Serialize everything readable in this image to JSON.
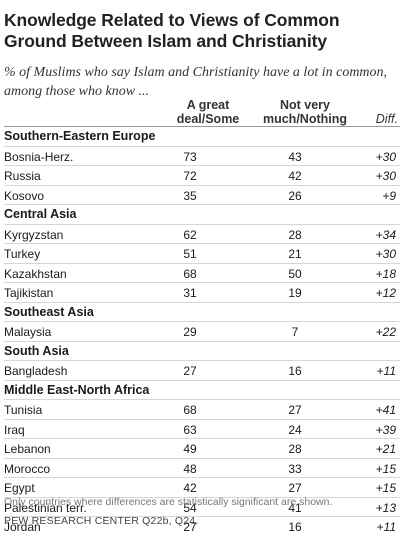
{
  "chart_data": {
    "type": "table",
    "title": "Knowledge Related to Views of Common Ground Between Islam and Christianity",
    "subtitle": "% of Muslims who say Islam and Christianity have a lot in common, among those who know ...",
    "columns": [
      "A great deal/Some",
      "Not very much/Nothing",
      "Diff."
    ],
    "groups": [
      {
        "region": "Southern-Eastern Europe",
        "rows": [
          {
            "country": "Bosnia-Herz.",
            "a": "73",
            "b": "43",
            "diff": "+30"
          },
          {
            "country": "Russia",
            "a": "72",
            "b": "42",
            "diff": "+30"
          },
          {
            "country": "Kosovo",
            "a": "35",
            "b": "26",
            "diff": "+9"
          }
        ]
      },
      {
        "region": "Central Asia",
        "rows": [
          {
            "country": "Kyrgyzstan",
            "a": "62",
            "b": "28",
            "diff": "+34"
          },
          {
            "country": "Turkey",
            "a": "51",
            "b": "21",
            "diff": "+30"
          },
          {
            "country": "Kazakhstan",
            "a": "68",
            "b": "50",
            "diff": "+18"
          },
          {
            "country": "Tajikistan",
            "a": "31",
            "b": "19",
            "diff": "+12"
          }
        ]
      },
      {
        "region": "Southeast Asia",
        "rows": [
          {
            "country": "Malaysia",
            "a": "29",
            "b": "7",
            "diff": "+22"
          }
        ]
      },
      {
        "region": "South Asia",
        "rows": [
          {
            "country": "Bangladesh",
            "a": "27",
            "b": "16",
            "diff": "+11"
          }
        ]
      },
      {
        "region": "Middle East-North Africa",
        "rows": [
          {
            "country": "Tunisia",
            "a": "68",
            "b": "27",
            "diff": "+41"
          },
          {
            "country": "Iraq",
            "a": "63",
            "b": "24",
            "diff": "+39"
          },
          {
            "country": "Lebanon",
            "a": "49",
            "b": "28",
            "diff": "+21"
          },
          {
            "country": "Morocco",
            "a": "48",
            "b": "33",
            "diff": "+15"
          },
          {
            "country": "Egypt",
            "a": "42",
            "b": "27",
            "diff": "+15"
          },
          {
            "country": "Palestinian terr.",
            "a": "54",
            "b": "41",
            "diff": "+13"
          },
          {
            "country": "Jordan",
            "a": "27",
            "b": "16",
            "diff": "+11"
          }
        ]
      }
    ],
    "footnote": "Only countries where differences are statistically significant are shown.",
    "source": "PEW RESEARCH CENTER Q22b, Q24."
  }
}
